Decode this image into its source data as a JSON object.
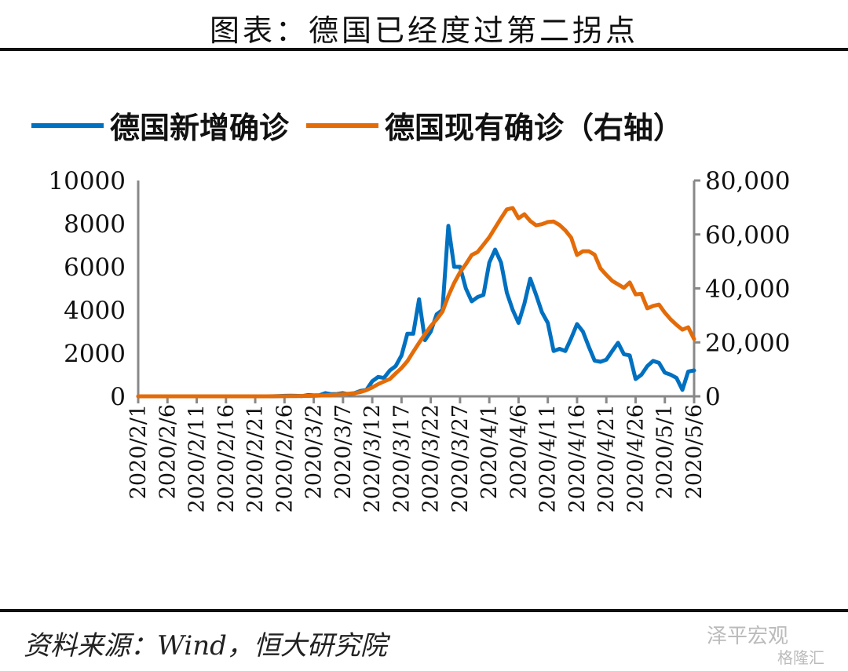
{
  "title": "图表：德国已经度过第二拐点",
  "source": "资料来源：Wind，恒大研究院",
  "watermark": {
    "primary": "泽平宏观",
    "secondary": "格隆汇"
  },
  "colors": {
    "new_cases": "#0070C0",
    "active_cases": "#E36C09",
    "axis": "#888888"
  },
  "chart_data": {
    "type": "line",
    "title": "图表：德国已经度过第二拐点",
    "x_start": "2020/2/1",
    "x_tick_labels": [
      "2020/2/1",
      "2020/2/6",
      "2020/2/11",
      "2020/2/16",
      "2020/2/21",
      "2020/2/26",
      "2020/3/2",
      "2020/3/7",
      "2020/3/12",
      "2020/3/17",
      "2020/3/22",
      "2020/3/27",
      "2020/4/1",
      "2020/4/6",
      "2020/4/11",
      "2020/4/16",
      "2020/4/21",
      "2020/4/26",
      "2020/5/1",
      "2020/5/6"
    ],
    "x_tick_every_days": 5,
    "y_left": {
      "range": [
        0,
        10000
      ],
      "ticks": [
        "0",
        "2000",
        "4000",
        "6000",
        "8000",
        "10000"
      ],
      "tick_values": [
        0,
        2000,
        4000,
        6000,
        8000,
        10000
      ]
    },
    "y_right": {
      "range": [
        0,
        80000
      ],
      "ticks": [
        "0",
        "20,000",
        "40,000",
        "60,000",
        "80,000"
      ],
      "tick_values": [
        0,
        20000,
        40000,
        60000,
        80000
      ]
    },
    "legend_position": "top",
    "series": [
      {
        "name": "德国新增确诊",
        "axis": "left",
        "values": [
          0,
          0,
          0,
          0,
          0,
          0,
          0,
          0,
          0,
          0,
          0,
          0,
          0,
          0,
          0,
          0,
          0,
          0,
          0,
          0,
          0,
          0,
          0,
          0,
          10,
          20,
          30,
          20,
          10,
          60,
          40,
          50,
          150,
          100,
          110,
          150,
          100,
          150,
          250,
          300,
          700,
          900,
          850,
          1200,
          1400,
          1900,
          2900,
          2900,
          4500,
          2600,
          3000,
          3800,
          4000,
          7900,
          6000,
          6000,
          5000,
          4400,
          4600,
          4700,
          6200,
          6800,
          6200,
          4800,
          4000,
          3400,
          4300,
          5450,
          4700,
          3900,
          3400,
          2100,
          2200,
          2100,
          2700,
          3350,
          3000,
          2300,
          1650,
          1600,
          1700,
          2100,
          2480,
          1950,
          1900,
          800,
          1000,
          1400,
          1640,
          1550,
          1100,
          1000,
          850,
          300,
          1150,
          1200
        ]
      },
      {
        "name": "德国现有确诊（右轴）",
        "axis": "right",
        "values": [
          10,
          10,
          10,
          10,
          10,
          10,
          10,
          12,
          13,
          14,
          14,
          14,
          14,
          14,
          14,
          14,
          14,
          14,
          14,
          14,
          14,
          14,
          14,
          15,
          20,
          30,
          50,
          80,
          120,
          150,
          180,
          250,
          350,
          500,
          650,
          800,
          1000,
          1200,
          1600,
          2300,
          3300,
          4500,
          5500,
          6400,
          8500,
          10500,
          13000,
          16500,
          19800,
          23000,
          26000,
          28500,
          31400,
          37200,
          42000,
          46000,
          49000,
          52400,
          53500,
          56200,
          59000,
          62500,
          66000,
          69300,
          69800,
          66000,
          67500,
          65000,
          63400,
          63800,
          64600,
          64800,
          63500,
          61500,
          58800,
          52400,
          53800,
          53800,
          52500,
          47400,
          45000,
          42800,
          41500,
          40200,
          42200,
          37800,
          38000,
          32600,
          33500,
          34000,
          31000,
          28500,
          26500,
          24700,
          25600,
          21200
        ]
      }
    ]
  }
}
